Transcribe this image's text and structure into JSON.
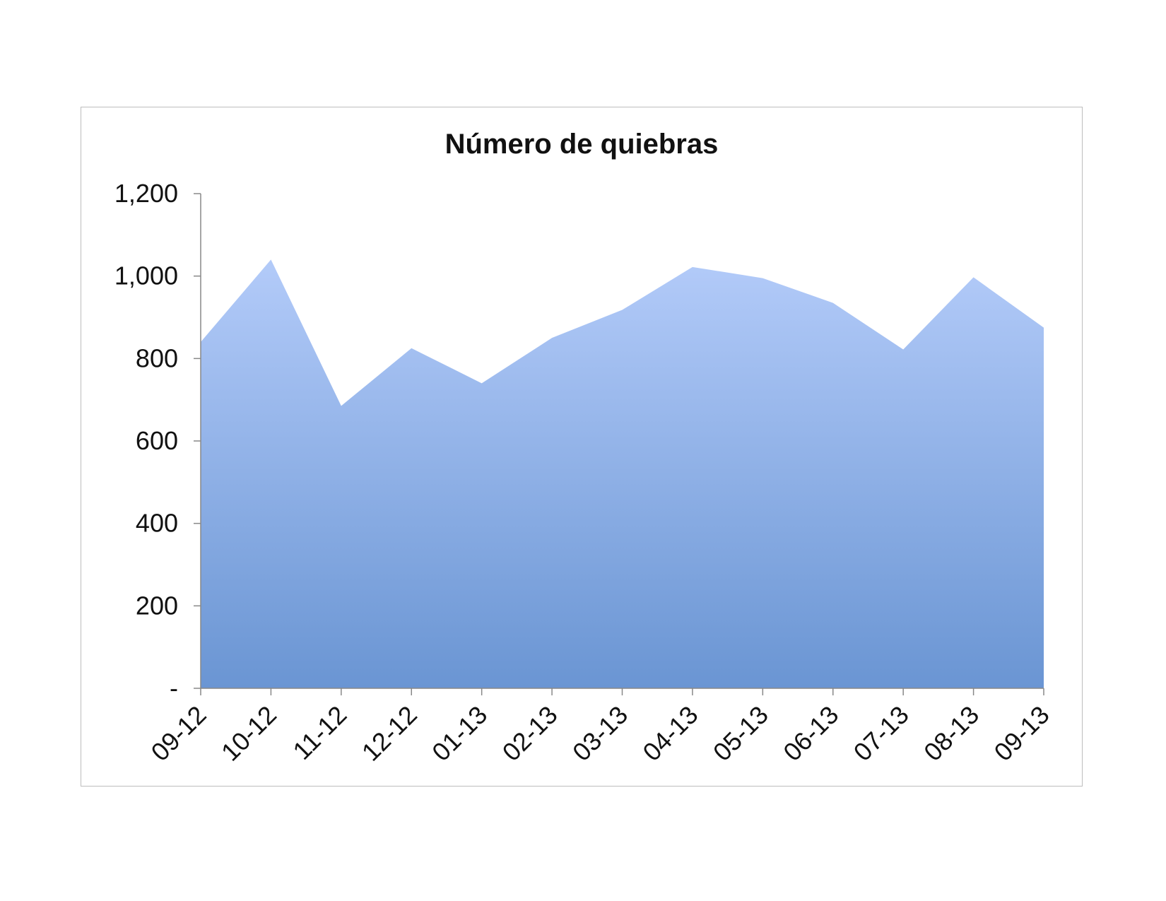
{
  "chart_data": {
    "type": "area",
    "title": "Número de quiebras",
    "xlabel": "",
    "ylabel": "",
    "categories": [
      "09-12",
      "10-12",
      "11-12",
      "12-12",
      "01-13",
      "02-13",
      "03-13",
      "04-13",
      "05-13",
      "06-13",
      "07-13",
      "08-13",
      "09-13"
    ],
    "series": [
      {
        "values": [
          840,
          1040,
          685,
          825,
          740,
          850,
          918,
          1022,
          995,
          935,
          822,
          997,
          875
        ]
      }
    ],
    "ylim": [
      0,
      1200
    ],
    "yticks": [
      0,
      200,
      400,
      600,
      800,
      1000,
      1200
    ],
    "ytick_labels": [
      "-",
      "200",
      "400",
      "600",
      "800",
      "1,000",
      "1,200"
    ],
    "grid": false,
    "legend": "none",
    "colors": {
      "fill_top": "#b3cbf9",
      "fill_bottom": "#6a95d3",
      "axis": "#888888"
    }
  }
}
